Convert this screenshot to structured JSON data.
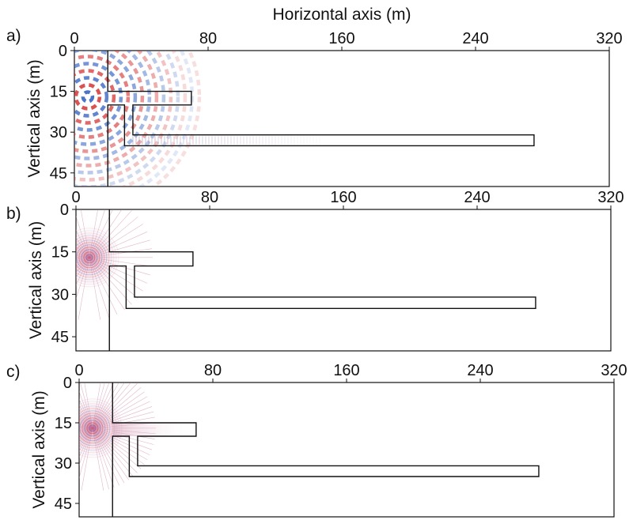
{
  "figure": {
    "x_axis_title": "Horizontal axis (m)",
    "y_axis_title": "Vertical axis (m)",
    "x_range": [
      0,
      320
    ],
    "y_range": [
      0,
      50
    ],
    "x_ticks": [
      "0",
      "80",
      "160",
      "240",
      "320"
    ],
    "y_ticks": [
      "0",
      "15",
      "30",
      "45"
    ],
    "colors": {
      "positive": "#d22b2b",
      "negative": "#2f5fc0",
      "outline": "#111111"
    }
  },
  "panels": [
    {
      "letter": "a)",
      "wavefield": "low-frequency"
    },
    {
      "letter": "b)",
      "wavefield": "mid-frequency"
    },
    {
      "letter": "c)",
      "wavefield": "high-frequency"
    }
  ],
  "geometry_outline_m": [
    [
      20,
      0
    ],
    [
      20,
      15
    ],
    [
      70,
      15
    ],
    [
      70,
      20
    ],
    [
      35,
      20
    ],
    [
      35,
      31
    ],
    [
      275,
      31
    ],
    [
      275,
      35
    ],
    [
      30,
      35
    ],
    [
      30,
      20
    ],
    [
      20,
      20
    ],
    [
      20,
      50
    ]
  ]
}
